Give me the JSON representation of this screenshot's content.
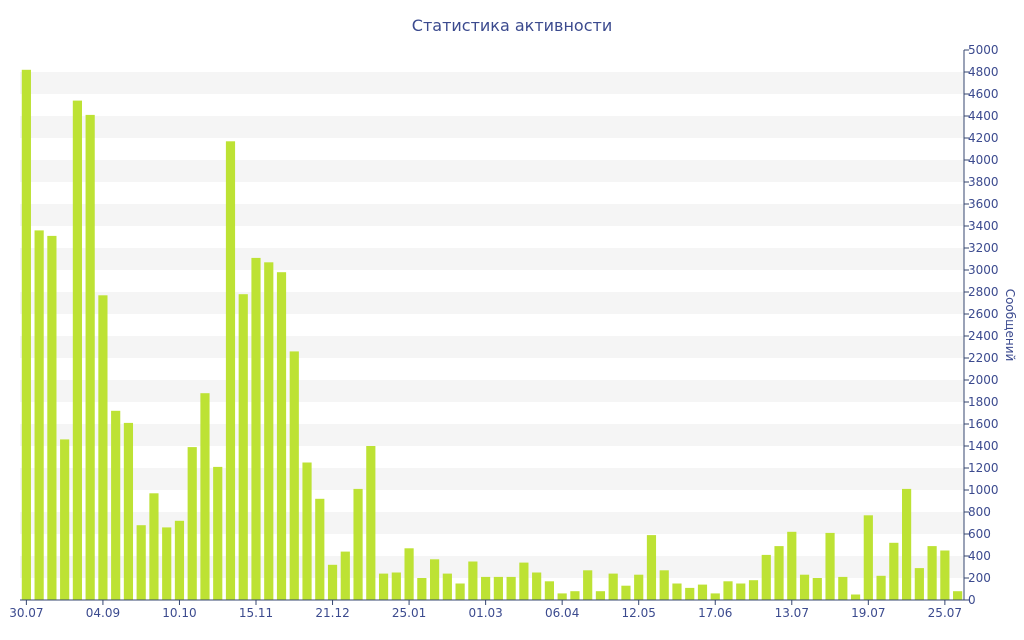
{
  "chart_data": {
    "type": "bar",
    "title": "Статистика активности",
    "ylabel": "Сообщений",
    "xlabel": "",
    "ylim": [
      0,
      5000
    ],
    "y_ticks": [
      0,
      200,
      400,
      600,
      800,
      1000,
      1200,
      1400,
      1600,
      1800,
      2000,
      2200,
      2400,
      2600,
      2800,
      3000,
      3200,
      3400,
      3600,
      3800,
      4000,
      4200,
      4400,
      4600,
      4800,
      5000
    ],
    "x_tick_labels": [
      "30.07",
      "04.09",
      "10.10",
      "15.11",
      "21.12",
      "25.01",
      "01.03",
      "06.04",
      "12.05",
      "17.06",
      "13.07",
      "19.07",
      "25.07"
    ],
    "x_tick_indices": [
      0,
      6,
      12,
      18,
      24,
      30,
      36,
      42,
      48,
      54,
      60,
      66,
      72
    ],
    "values": [
      4820,
      3360,
      3310,
      1460,
      4540,
      4410,
      2770,
      1720,
      1610,
      680,
      970,
      660,
      720,
      1390,
      1880,
      1210,
      4170,
      2780,
      3110,
      3070,
      2980,
      2260,
      1250,
      920,
      320,
      440,
      1010,
      1400,
      240,
      250,
      470,
      200,
      370,
      240,
      150,
      350,
      210,
      210,
      210,
      340,
      250,
      170,
      60,
      80,
      270,
      80,
      240,
      130,
      230,
      590,
      270,
      150,
      110,
      140,
      60,
      170,
      150,
      180,
      410,
      490,
      620,
      230,
      200,
      610,
      210,
      50,
      770,
      220,
      520,
      1010,
      290,
      490,
      450,
      80
    ],
    "bar_color": "#bde234",
    "band_color": "#f5f5f5",
    "text_color": "#3b4a8e",
    "axis_color": "#34456f",
    "legend": "none",
    "grid": "alternating horizontal bands"
  }
}
